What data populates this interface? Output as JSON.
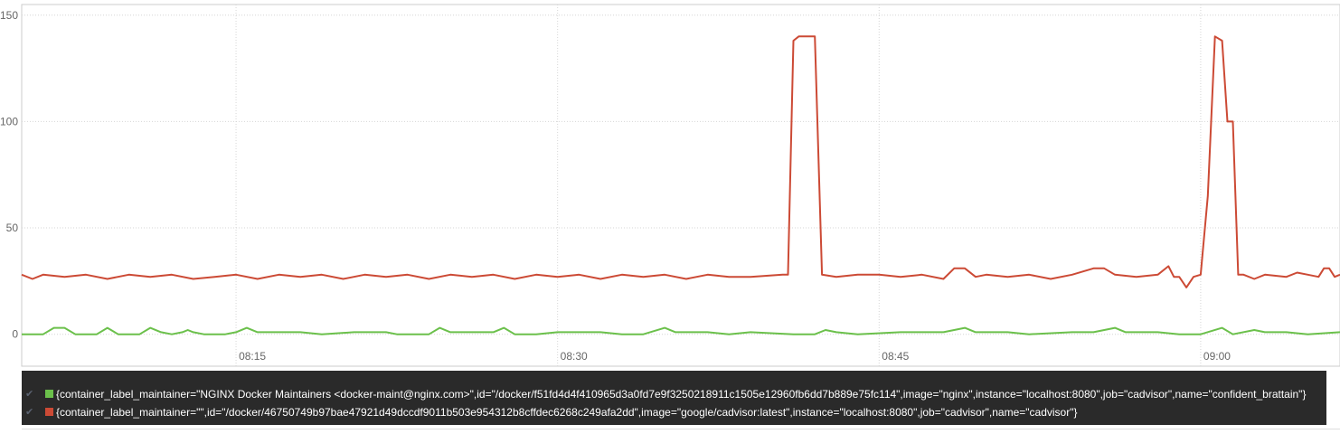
{
  "colors": {
    "series_green": "#6bc04b",
    "series_red": "#cc4a35",
    "grid": "#d6d6d6",
    "legend_bg": "#2a2a2a"
  },
  "chart_data": {
    "type": "line",
    "x_ticks": [
      "08:15",
      "08:30",
      "08:45",
      "09:00"
    ],
    "y_ticks": [
      0,
      50,
      100,
      150
    ],
    "ylim": [
      -15,
      155
    ],
    "xlim": [
      "08:05:00",
      "09:06:30"
    ],
    "grid": true,
    "legend_position": "bottom",
    "series": [
      {
        "name": "{container_label_maintainer=\"NGINX Docker Maintainers <docker-maint@nginx.com>\",id=\"/docker/f51fd4d4f410965d3a0fd7e9f3250218911c1505e12960fb6dd7b889e75fc114\",image=\"nginx\",instance=\"localhost:8080\",job=\"cadvisor\",name=\"confident_brattain\"}",
        "color": "#6bc04b",
        "points": [
          [
            "08:05:00",
            0
          ],
          [
            "08:06:00",
            0
          ],
          [
            "08:06:30",
            3
          ],
          [
            "08:07:00",
            3
          ],
          [
            "08:07:30",
            0
          ],
          [
            "08:08:30",
            0
          ],
          [
            "08:09:00",
            3
          ],
          [
            "08:09:30",
            0
          ],
          [
            "08:10:30",
            0
          ],
          [
            "08:11:00",
            3
          ],
          [
            "08:11:30",
            1
          ],
          [
            "08:12:00",
            0
          ],
          [
            "08:12:30",
            1
          ],
          [
            "08:12:45",
            2
          ],
          [
            "08:13:00",
            1
          ],
          [
            "08:13:30",
            0
          ],
          [
            "08:14:30",
            0
          ],
          [
            "08:15:00",
            1
          ],
          [
            "08:15:30",
            3
          ],
          [
            "08:16:00",
            1
          ],
          [
            "08:17:00",
            1
          ],
          [
            "08:18:00",
            1
          ],
          [
            "08:19:00",
            0
          ],
          [
            "08:20:30",
            1
          ],
          [
            "08:22:00",
            1
          ],
          [
            "08:22:30",
            0
          ],
          [
            "08:24:00",
            0
          ],
          [
            "08:24:30",
            3
          ],
          [
            "08:25:00",
            1
          ],
          [
            "08:26:00",
            1
          ],
          [
            "08:27:00",
            1
          ],
          [
            "08:27:30",
            3
          ],
          [
            "08:28:00",
            0
          ],
          [
            "08:29:00",
            0
          ],
          [
            "08:30:00",
            1
          ],
          [
            "08:32:00",
            1
          ],
          [
            "08:33:00",
            0
          ],
          [
            "08:34:00",
            0
          ],
          [
            "08:35:00",
            3
          ],
          [
            "08:35:30",
            1
          ],
          [
            "08:37:00",
            1
          ],
          [
            "08:38:00",
            0
          ],
          [
            "08:39:00",
            1
          ],
          [
            "08:41:00",
            0
          ],
          [
            "08:42:00",
            0
          ],
          [
            "08:42:30",
            2
          ],
          [
            "08:43:00",
            1
          ],
          [
            "08:44:00",
            0
          ],
          [
            "08:46:00",
            1
          ],
          [
            "08:48:00",
            1
          ],
          [
            "08:49:00",
            3
          ],
          [
            "08:49:30",
            1
          ],
          [
            "08:51:00",
            1
          ],
          [
            "08:52:00",
            0
          ],
          [
            "08:54:00",
            1
          ],
          [
            "08:55:00",
            1
          ],
          [
            "08:56:00",
            3
          ],
          [
            "08:56:30",
            1
          ],
          [
            "08:58:00",
            1
          ],
          [
            "08:59:00",
            0
          ],
          [
            "09:00:00",
            0
          ],
          [
            "09:01:00",
            3
          ],
          [
            "09:01:30",
            0
          ],
          [
            "09:02:30",
            2
          ],
          [
            "09:03:00",
            1
          ],
          [
            "09:04:00",
            1
          ],
          [
            "09:05:00",
            0
          ],
          [
            "09:06:30",
            1
          ]
        ]
      },
      {
        "name": "{container_label_maintainer=\"\",id=\"/docker/46750749b97bae47921d49dccdf9011b503e954312b8cffdec6268c249afa2dd\",image=\"google/cadvisor:latest\",instance=\"localhost:8080\",job=\"cadvisor\",name=\"cadvisor\"}",
        "color": "#cc4a35",
        "points": [
          [
            "08:05:00",
            28
          ],
          [
            "08:05:30",
            26
          ],
          [
            "08:06:00",
            28
          ],
          [
            "08:07:00",
            27
          ],
          [
            "08:08:00",
            28
          ],
          [
            "08:09:00",
            26
          ],
          [
            "08:10:00",
            28
          ],
          [
            "08:11:00",
            27
          ],
          [
            "08:12:00",
            28
          ],
          [
            "08:13:00",
            26
          ],
          [
            "08:14:00",
            27
          ],
          [
            "08:15:00",
            28
          ],
          [
            "08:16:00",
            26
          ],
          [
            "08:17:00",
            28
          ],
          [
            "08:18:00",
            27
          ],
          [
            "08:19:00",
            28
          ],
          [
            "08:20:00",
            26
          ],
          [
            "08:21:00",
            28
          ],
          [
            "08:22:00",
            27
          ],
          [
            "08:23:00",
            28
          ],
          [
            "08:24:00",
            26
          ],
          [
            "08:25:00",
            28
          ],
          [
            "08:26:00",
            27
          ],
          [
            "08:27:00",
            28
          ],
          [
            "08:28:00",
            26
          ],
          [
            "08:29:00",
            28
          ],
          [
            "08:30:00",
            27
          ],
          [
            "08:31:00",
            28
          ],
          [
            "08:32:00",
            26
          ],
          [
            "08:33:00",
            28
          ],
          [
            "08:34:00",
            27
          ],
          [
            "08:35:00",
            28
          ],
          [
            "08:36:00",
            26
          ],
          [
            "08:37:00",
            28
          ],
          [
            "08:38:00",
            27
          ],
          [
            "08:39:00",
            27
          ],
          [
            "08:40:30",
            28
          ],
          [
            "08:40:45",
            28
          ],
          [
            "08:41:00",
            138
          ],
          [
            "08:41:15",
            140
          ],
          [
            "08:42:00",
            140
          ],
          [
            "08:42:20",
            28
          ],
          [
            "08:43:00",
            27
          ],
          [
            "08:44:00",
            28
          ],
          [
            "08:45:00",
            28
          ],
          [
            "08:46:00",
            27
          ],
          [
            "08:47:00",
            28
          ],
          [
            "08:48:00",
            26
          ],
          [
            "08:48:30",
            31
          ],
          [
            "08:49:00",
            31
          ],
          [
            "08:49:30",
            27
          ],
          [
            "08:50:00",
            28
          ],
          [
            "08:51:00",
            27
          ],
          [
            "08:52:00",
            28
          ],
          [
            "08:53:00",
            26
          ],
          [
            "08:54:00",
            28
          ],
          [
            "08:55:00",
            31
          ],
          [
            "08:55:30",
            31
          ],
          [
            "08:56:00",
            28
          ],
          [
            "08:57:00",
            27
          ],
          [
            "08:58:00",
            28
          ],
          [
            "08:58:30",
            32
          ],
          [
            "08:58:45",
            27
          ],
          [
            "08:59:00",
            27
          ],
          [
            "08:59:20",
            22
          ],
          [
            "08:59:40",
            27
          ],
          [
            "09:00:00",
            28
          ],
          [
            "09:00:20",
            65
          ],
          [
            "09:00:40",
            140
          ],
          [
            "09:01:00",
            138
          ],
          [
            "09:01:15",
            100
          ],
          [
            "09:01:30",
            100
          ],
          [
            "09:01:45",
            28
          ],
          [
            "09:02:00",
            28
          ],
          [
            "09:02:30",
            26
          ],
          [
            "09:03:00",
            28
          ],
          [
            "09:04:00",
            27
          ],
          [
            "09:04:30",
            29
          ],
          [
            "09:05:00",
            28
          ],
          [
            "09:05:30",
            27
          ],
          [
            "09:05:45",
            31
          ],
          [
            "09:06:00",
            31
          ],
          [
            "09:06:15",
            27
          ],
          [
            "09:06:30",
            28
          ]
        ]
      }
    ]
  }
}
